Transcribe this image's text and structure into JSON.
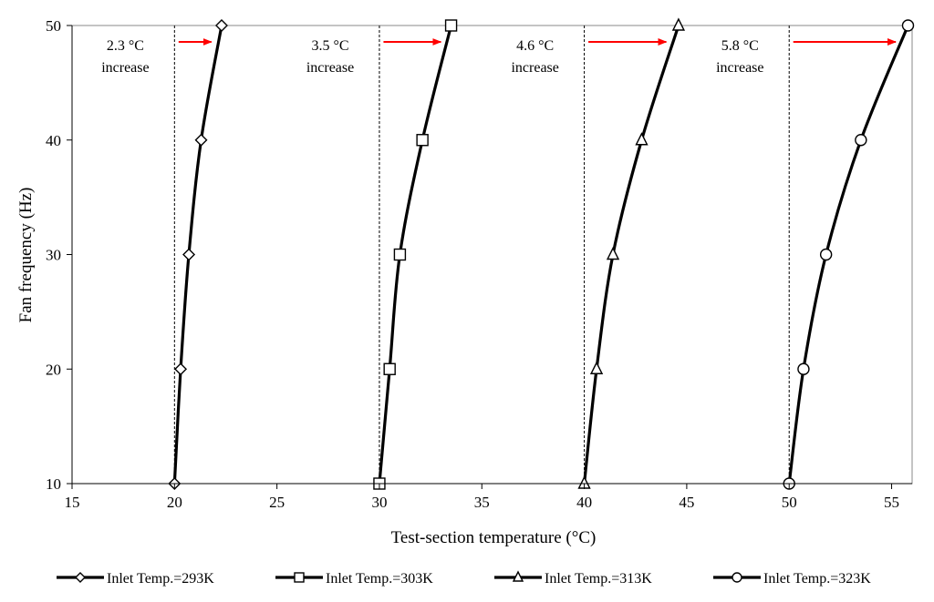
{
  "chart_data": {
    "type": "line",
    "xlabel": "Test-section temperature (°C)",
    "ylabel": "Fan frequency (Hz)",
    "xlim": [
      15,
      56
    ],
    "ylim": [
      10,
      50
    ],
    "xticks": [
      15,
      20,
      25,
      30,
      35,
      40,
      45,
      50,
      55
    ],
    "yticks": [
      10,
      20,
      30,
      40,
      50
    ],
    "grid": false,
    "legend_position": "bottom",
    "line_color": "#000000",
    "arrow_color": "#ff0000",
    "series": [
      {
        "name": "Inlet Temp.=293K",
        "marker": "diamond",
        "points": [
          [
            20.0,
            10
          ],
          [
            20.3,
            20
          ],
          [
            20.7,
            30
          ],
          [
            21.3,
            40
          ],
          [
            22.3,
            50
          ]
        ]
      },
      {
        "name": "Inlet Temp.=303K",
        "marker": "square",
        "points": [
          [
            30.0,
            10
          ],
          [
            30.5,
            20
          ],
          [
            31.0,
            30
          ],
          [
            32.1,
            40
          ],
          [
            33.5,
            50
          ]
        ]
      },
      {
        "name": "Inlet Temp.=313K",
        "marker": "triangle",
        "points": [
          [
            40.0,
            10
          ],
          [
            40.6,
            20
          ],
          [
            41.4,
            30
          ],
          [
            42.8,
            40
          ],
          [
            44.6,
            50
          ]
        ]
      },
      {
        "name": "Inlet Temp.=323K",
        "marker": "circle",
        "points": [
          [
            50.0,
            10
          ],
          [
            50.7,
            20
          ],
          [
            51.8,
            30
          ],
          [
            53.5,
            40
          ],
          [
            55.8,
            50
          ]
        ]
      }
    ],
    "reference_lines_x": [
      20,
      30,
      40,
      50
    ],
    "annotations": [
      {
        "line1": "2.3 °C",
        "line2": "increase",
        "x": 17.6,
        "arrow_from": 20.2,
        "arrow_to": 21.8
      },
      {
        "line1": "3.5 °C",
        "line2": "increase",
        "x": 27.6,
        "arrow_from": 30.2,
        "arrow_to": 33.0
      },
      {
        "line1": "4.6 °C",
        "line2": "increase",
        "x": 37.6,
        "arrow_from": 40.2,
        "arrow_to": 44.0
      },
      {
        "line1": "5.8 °C",
        "line2": "increase",
        "x": 47.6,
        "arrow_from": 50.2,
        "arrow_to": 55.2
      }
    ]
  }
}
